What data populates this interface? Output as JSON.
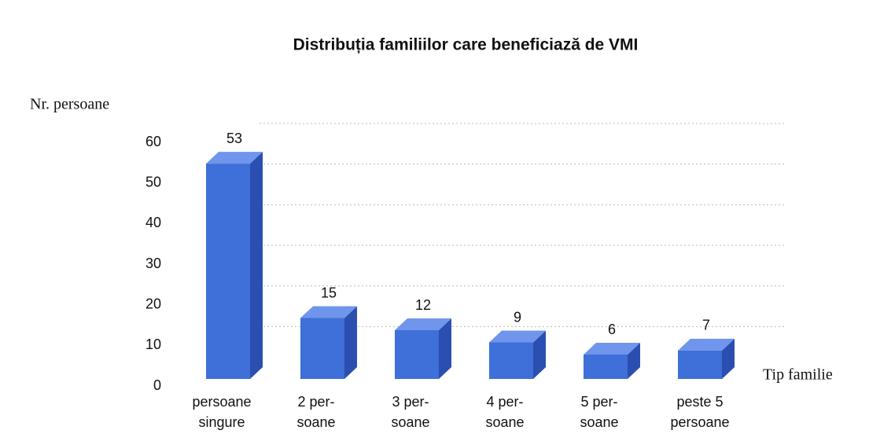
{
  "chart_data": {
    "type": "bar3d",
    "title": "Distribuția familiilor care beneficiază de  VMI",
    "y_label": "Nr. persoane",
    "x_label": "Tip familie",
    "categories": [
      [
        "persoane",
        "singure"
      ],
      [
        "2 per-",
        "soane"
      ],
      [
        "3 per-",
        "soane"
      ],
      [
        "4 per-",
        "soane"
      ],
      [
        "5 per-",
        "soane"
      ],
      [
        "peste 5",
        "persoane"
      ]
    ],
    "values": [
      53,
      15,
      12,
      9,
      6,
      7
    ],
    "color": "#3f6fd8",
    "ylim": [
      0,
      60
    ],
    "yticks": [
      0,
      10,
      20,
      30,
      40,
      50,
      60
    ],
    "grid": true
  }
}
